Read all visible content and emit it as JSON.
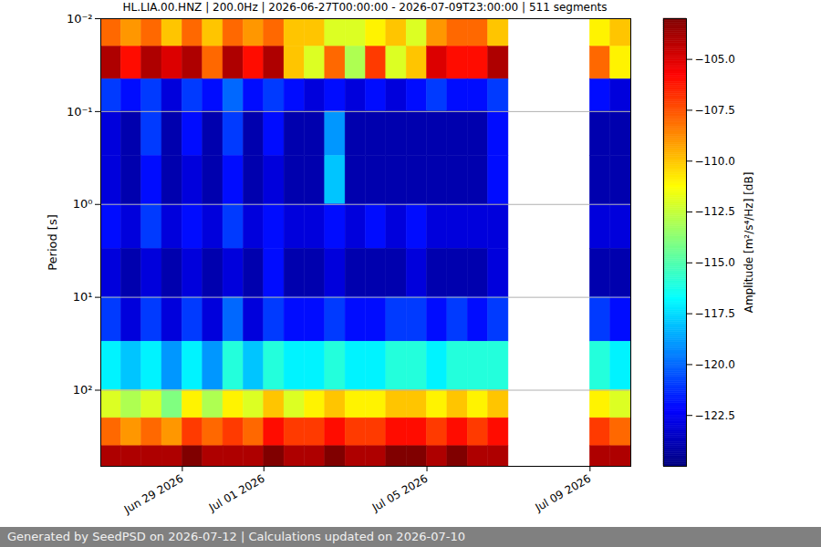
{
  "chart_data": {
    "type": "heatmap",
    "title": "HL.LIA.00.HNZ | 200.0Hz | 2026-06-27T00:00:00 - 2026-07-09T23:00:00 | 511 segments",
    "y_label": "Period [s]",
    "footer": "Generated by SeedPSD on 2026-07-12 | Calculations updated on 2026-07-10",
    "log": "y",
    "grid": "y",
    "xlim": [
      "2026-06-27T00:00",
      "2026-07-10T00:00"
    ],
    "xticks": [
      {
        "value": "2026-06-29T00:00",
        "label": "Jun 29 2026"
      },
      {
        "value": "2026-07-01T00:00",
        "label": "Jul 01 2026"
      },
      {
        "value": "2026-07-05T00:00",
        "label": "Jul 05 2026"
      },
      {
        "value": "2026-07-09T00:00",
        "label": "Jul 09 2026"
      }
    ],
    "ylim": [
      0.01,
      660
    ],
    "yticks": [
      {
        "value": 0.01,
        "label": "10⁻²"
      },
      {
        "value": 0.1,
        "label": "10⁻¹"
      },
      {
        "value": 1,
        "label": "10⁰"
      },
      {
        "value": 10,
        "label": "10¹"
      },
      {
        "value": 100,
        "label": "10²"
      }
    ],
    "x_bins": [
      "2026-06-27T00:00",
      "2026-06-27T12:00",
      "2026-06-28T00:00",
      "2026-06-28T12:00",
      "2026-06-29T00:00",
      "2026-06-29T12:00",
      "2026-06-30T00:00",
      "2026-06-30T12:00",
      "2026-07-01T00:00",
      "2026-07-01T12:00",
      "2026-07-02T00:00",
      "2026-07-02T12:00",
      "2026-07-03T00:00",
      "2026-07-03T12:00",
      "2026-07-04T00:00",
      "2026-07-04T12:00",
      "2026-07-05T00:00",
      "2026-07-05T12:00",
      "2026-07-06T00:00",
      "2026-07-06T12:00",
      "2026-07-07T00:00",
      "2026-07-07T12:00",
      "2026-07-08T00:00",
      "2026-07-08T12:00",
      "2026-07-09T00:00",
      "2026-07-09T12:00",
      "2026-07-10T00:00"
    ],
    "y_bins": [
      0.01,
      0.02,
      0.045,
      0.1,
      0.3,
      1,
      3,
      10,
      30,
      100,
      200,
      400,
      660
    ],
    "values": [
      [
        -108,
        -109,
        -108,
        -110,
        -108,
        -110,
        -108,
        -109,
        -108,
        -110,
        -110,
        -112,
        -112,
        -111,
        -110,
        -112,
        -109,
        -108,
        -108,
        -110,
        null,
        null,
        null,
        null,
        -111,
        -110
      ],
      [
        -104,
        -106,
        -104,
        -105,
        -104,
        -108,
        -104,
        -106,
        -104,
        -110,
        -112,
        -108,
        -113,
        -107,
        -112,
        -110,
        -105,
        -106,
        -106,
        -104,
        null,
        null,
        null,
        null,
        -108,
        -111
      ],
      [
        -121,
        -122,
        -121,
        -123,
        -121,
        -122,
        -120,
        -122,
        -121,
        -122,
        -123,
        -122,
        -123,
        -122,
        -123,
        -122,
        -121,
        -122,
        -122,
        -121,
        null,
        null,
        null,
        null,
        -122,
        -123
      ],
      [
        -123,
        -124,
        -121,
        -124,
        -122,
        -124,
        -121,
        -124,
        -122,
        -124,
        -124,
        -119,
        -124,
        -124,
        -124,
        -124,
        -124,
        -124,
        -124,
        -122,
        null,
        null,
        null,
        null,
        -124,
        -124
      ],
      [
        -123,
        -124,
        -122,
        -124,
        -123,
        -124,
        -122,
        -124,
        -123,
        -124,
        -124,
        -118,
        -124,
        -124,
        -124,
        -124,
        -124,
        -124,
        -124,
        -122,
        null,
        null,
        null,
        null,
        -124,
        -124
      ],
      [
        -122,
        -123,
        -121,
        -123,
        -122,
        -123,
        -121,
        -123,
        -122,
        -123,
        -123,
        -122,
        -123,
        -122,
        -123,
        -122,
        -123,
        -123,
        -123,
        -123,
        null,
        null,
        null,
        null,
        -123,
        -123
      ],
      [
        -123,
        -124,
        -123,
        -124,
        -123,
        -124,
        -123,
        -124,
        -122,
        -124,
        -124,
        -123,
        -124,
        -124,
        -124,
        -123,
        -124,
        -124,
        -124,
        -123,
        null,
        null,
        null,
        null,
        -124,
        -124
      ],
      [
        -121,
        -123,
        -121,
        -123,
        -121,
        -123,
        -120,
        -123,
        -121,
        -122,
        -122,
        -121,
        -122,
        -122,
        -121,
        -121,
        -122,
        -121,
        -122,
        -121,
        null,
        null,
        null,
        null,
        -121,
        -122
      ],
      [
        -117,
        -118,
        -117,
        -119,
        -117,
        -119,
        -116,
        -118,
        -116,
        -117,
        -117,
        -116,
        -117,
        -117,
        -116,
        -116,
        -117,
        -116,
        -116,
        -116,
        null,
        null,
        null,
        null,
        -116,
        -117
      ],
      [
        -112,
        -113,
        -112,
        -114,
        -111,
        -113,
        -111,
        -112,
        -110,
        -112,
        -111,
        -110,
        -111,
        -111,
        -110,
        -110,
        -111,
        -110,
        -111,
        -110,
        null,
        null,
        null,
        null,
        -111,
        -112
      ],
      [
        -108,
        -109,
        -108,
        -109,
        -107,
        -108,
        -107,
        -108,
        -106,
        -107,
        -107,
        -106,
        -107,
        -107,
        -106,
        -106,
        -107,
        -106,
        -107,
        -106,
        null,
        null,
        null,
        null,
        -107,
        -108
      ],
      [
        -104,
        -104,
        -104,
        -104,
        -103,
        -104,
        -104,
        -104,
        -103,
        -104,
        -104,
        -103,
        -104,
        -104,
        -103,
        -103,
        -104,
        -103,
        -104,
        -104,
        null,
        null,
        null,
        null,
        -104,
        -104
      ]
    ],
    "colorbar": {
      "label": "Amplitude [m²/s⁴/Hz] [dB]",
      "lim": [
        -125,
        -103
      ],
      "ticks": [
        {
          "value": -105,
          "label": "−105.0"
        },
        {
          "value": -107.5,
          "label": "−107.5"
        },
        {
          "value": -110,
          "label": "−110.0"
        },
        {
          "value": -112.5,
          "label": "−112.5"
        },
        {
          "value": -115,
          "label": "−115.0"
        },
        {
          "value": -117.5,
          "label": "−117.5"
        },
        {
          "value": -120,
          "label": "−120.0"
        },
        {
          "value": -122.5,
          "label": "−122.5"
        }
      ]
    }
  }
}
